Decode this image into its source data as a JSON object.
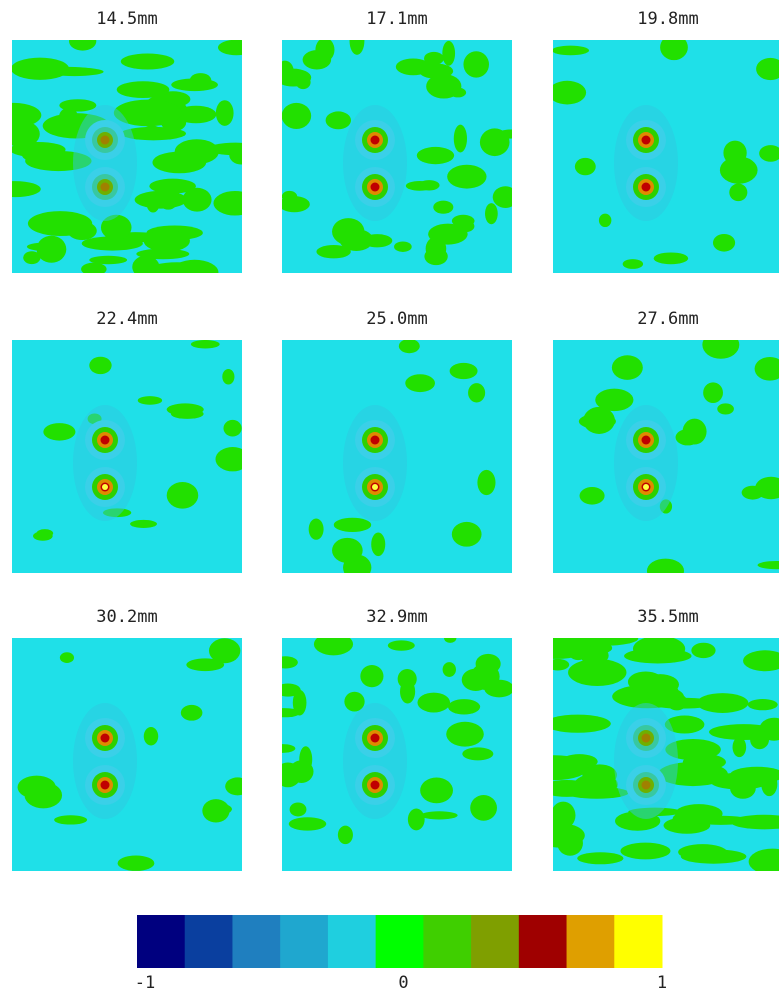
{
  "panels": [
    {
      "title": "14.5mm"
    },
    {
      "title": "17.1mm"
    },
    {
      "title": "19.8mm"
    },
    {
      "title": "22.4mm"
    },
    {
      "title": "25.0mm"
    },
    {
      "title": "27.6mm"
    },
    {
      "title": "30.2mm"
    },
    {
      "title": "32.9mm"
    },
    {
      "title": "35.5mm"
    }
  ],
  "colorbar": {
    "colors": [
      "#00007f",
      "#0a3f9f",
      "#1f7fbf",
      "#1fa7cf",
      "#1fcfdf",
      "#00ff00",
      "#3fcf00",
      "#7f9f00",
      "#9f0000",
      "#df9f00",
      "#ffff00"
    ],
    "lim": [
      -1,
      1
    ],
    "ticks": [
      -1,
      0,
      1
    ]
  }
}
